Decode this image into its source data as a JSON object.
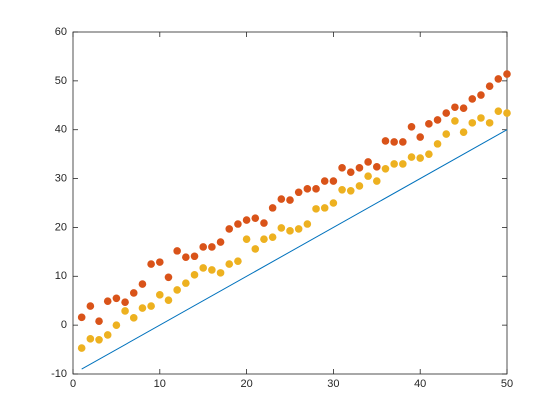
{
  "chart_data": {
    "type": "scatter",
    "x": [
      1,
      2,
      3,
      4,
      5,
      6,
      7,
      8,
      9,
      10,
      11,
      12,
      13,
      14,
      15,
      16,
      17,
      18,
      19,
      20,
      21,
      22,
      23,
      24,
      25,
      26,
      27,
      28,
      29,
      30,
      31,
      32,
      33,
      34,
      35,
      36,
      37,
      38,
      39,
      40,
      41,
      42,
      43,
      44,
      45,
      46,
      47,
      48,
      49,
      50
    ],
    "series": [
      {
        "type": "line",
        "color": "#0072BD",
        "x": [
          1,
          50
        ],
        "values": [
          -9,
          40
        ]
      },
      {
        "type": "scatter",
        "color": "#D95319",
        "values": [
          1.6,
          3.9,
          0.8,
          4.9,
          5.5,
          4.7,
          6.6,
          8.4,
          12.5,
          12.9,
          9.8,
          15.2,
          13.9,
          14.1,
          16,
          16,
          17,
          19.7,
          20.7,
          21.5,
          21.9,
          20.9,
          24,
          25.8,
          25.6,
          27.2,
          27.9,
          27.9,
          29.5,
          29.5,
          32.2,
          31.3,
          32.2,
          33.4,
          32.4,
          37.7,
          37.5,
          37.5,
          40.6,
          38.5,
          41.2,
          42,
          43.4,
          44.6,
          44.4,
          46.3,
          47.1,
          48.9,
          50.4,
          51.4
        ]
      },
      {
        "type": "scatter",
        "color": "#EDB120",
        "values": [
          -4.7,
          -2.8,
          -3,
          -2,
          0,
          2.9,
          1.5,
          3.5,
          3.9,
          6.2,
          5.1,
          7.2,
          8.6,
          10.3,
          11.7,
          11.3,
          10.7,
          12.5,
          13.1,
          17.6,
          15.6,
          17.6,
          18,
          19.9,
          19.3,
          19.7,
          20.7,
          23.8,
          24,
          25,
          27.7,
          27.5,
          28.5,
          30.5,
          29.5,
          32,
          33,
          33,
          34.4,
          34.2,
          35,
          37.1,
          39.1,
          41.8,
          39.5,
          41.4,
          42.4,
          41.4,
          43.8,
          43.4
        ]
      }
    ],
    "xlim": [
      0,
      50
    ],
    "xticks": [
      0,
      10,
      20,
      30,
      40,
      50
    ],
    "ylim": [
      -10,
      60
    ],
    "yticks": [
      -10,
      0,
      10,
      20,
      30,
      40,
      50,
      60
    ]
  }
}
